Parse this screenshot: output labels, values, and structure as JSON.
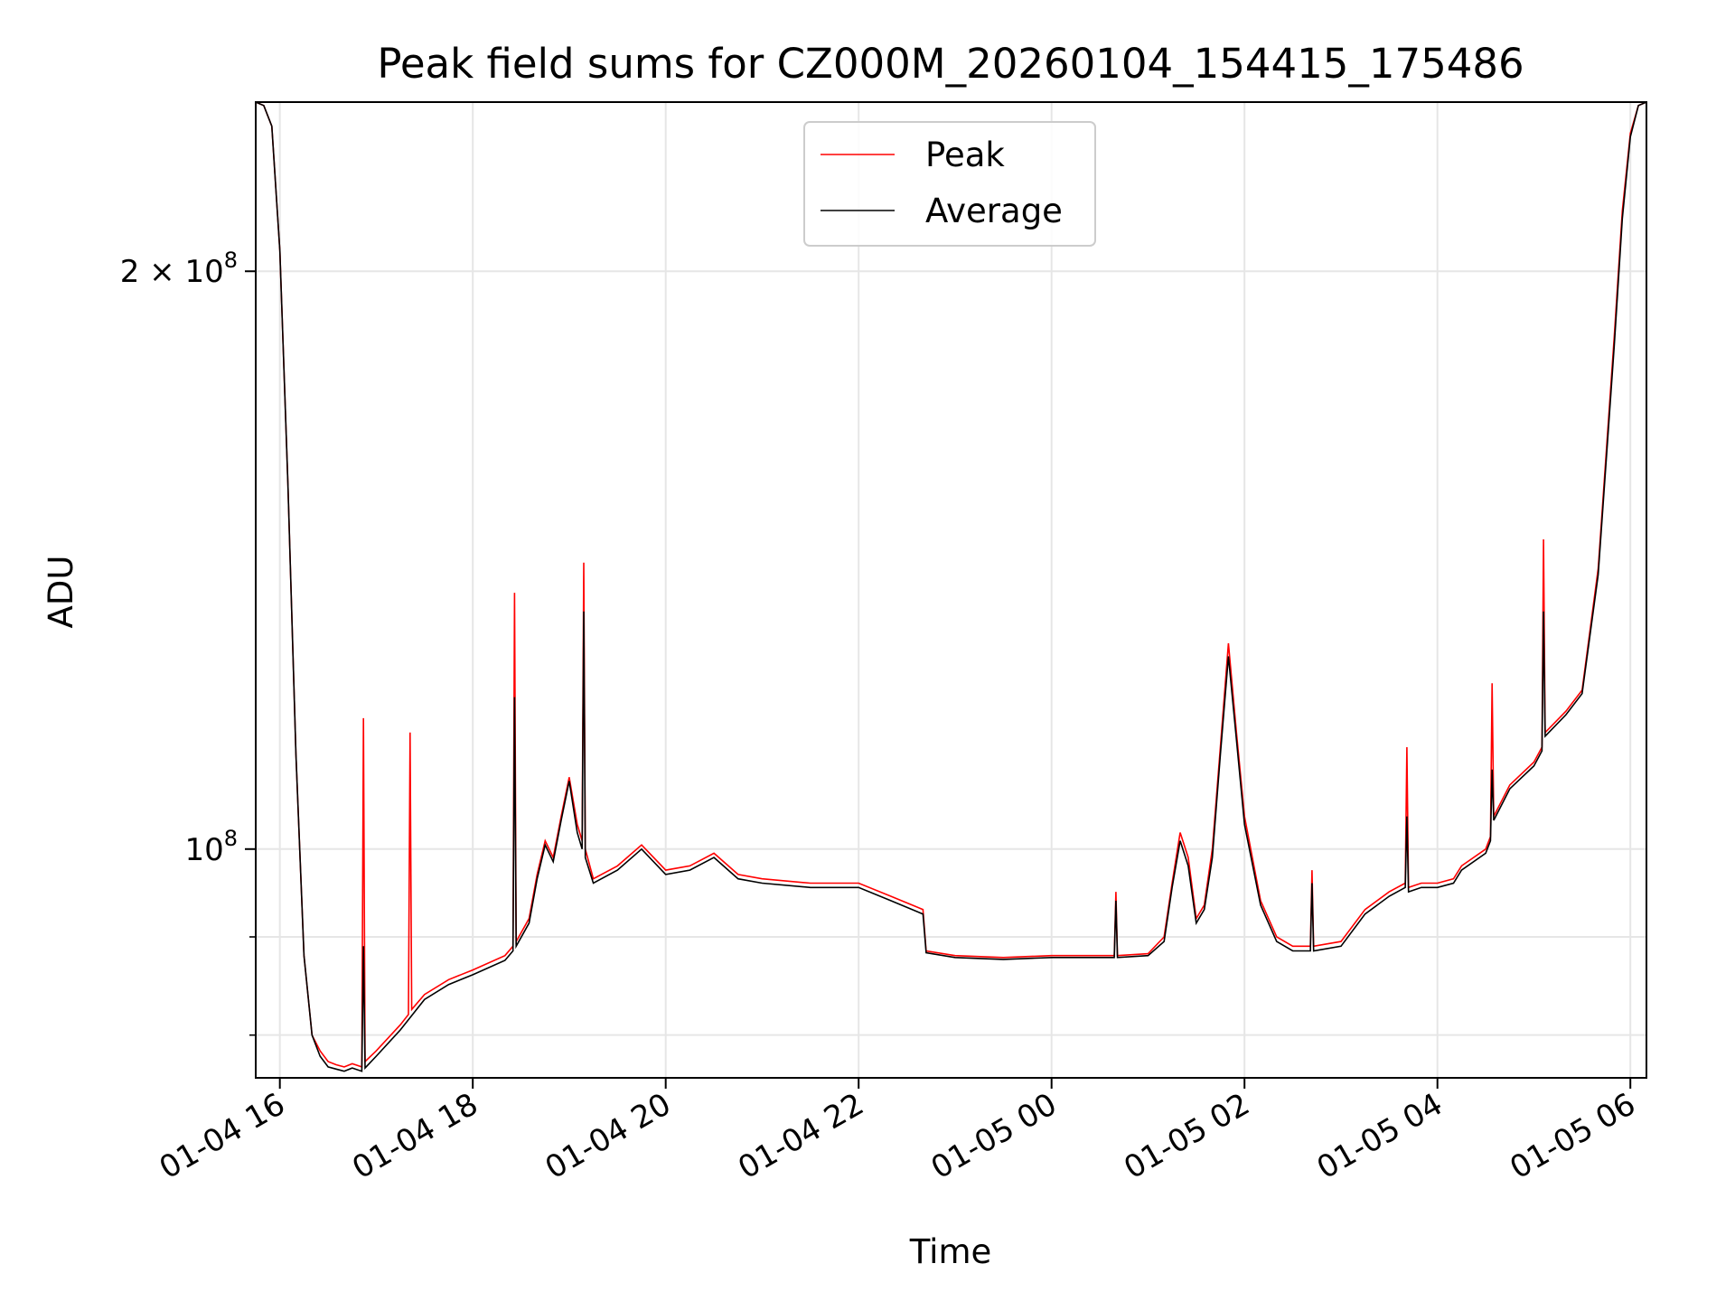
{
  "chart_data": {
    "type": "line",
    "title": "Peak field sums for CZ000M_20260104_154415_175486",
    "xlabel": "Time",
    "ylabel": "ADU",
    "yscale": "log",
    "ylim": [
      76000000,
      245000000
    ],
    "xlim": [
      "2026-01-04 15:45",
      "2026-01-05 06:10"
    ],
    "grid": true,
    "legend_position": "top-center",
    "x_ticks": [
      {
        "label": "01-04 16",
        "value": "2026-01-04 16:00"
      },
      {
        "label": "01-04 18",
        "value": "2026-01-04 18:00"
      },
      {
        "label": "01-04 20",
        "value": "2026-01-04 20:00"
      },
      {
        "label": "01-04 22",
        "value": "2026-01-04 22:00"
      },
      {
        "label": "01-05 00",
        "value": "2026-01-05 00:00"
      },
      {
        "label": "01-05 02",
        "value": "2026-01-05 02:00"
      },
      {
        "label": "01-05 04",
        "value": "2026-01-05 04:00"
      },
      {
        "label": "01-05 06",
        "value": "2026-01-05 06:00"
      }
    ],
    "y_major_ticks": [
      {
        "label_base": "2 × 10",
        "exp": "8",
        "value": 200000000
      },
      {
        "label_base": "10",
        "exp": "8",
        "value": 100000000
      }
    ],
    "y_minor_ticks": [
      80000000,
      90000000
    ],
    "series": [
      {
        "name": "Peak",
        "color": "#ff0000",
        "x": [
          "2026-01-04 15:45",
          "2026-01-04 15:50",
          "2026-01-04 15:55",
          "2026-01-04 16:00",
          "2026-01-04 16:05",
          "2026-01-04 16:10",
          "2026-01-04 16:15",
          "2026-01-04 16:20",
          "2026-01-04 16:25",
          "2026-01-04 16:30",
          "2026-01-04 16:35",
          "2026-01-04 16:40",
          "2026-01-04 16:45",
          "2026-01-04 16:51",
          "2026-01-04 16:52",
          "2026-01-04 16:53",
          "2026-01-04 17:00",
          "2026-01-04 17:15",
          "2026-01-04 17:20",
          "2026-01-04 17:21",
          "2026-01-04 17:22",
          "2026-01-04 17:30",
          "2026-01-04 17:45",
          "2026-01-04 18:00",
          "2026-01-04 18:20",
          "2026-01-04 18:25",
          "2026-01-04 18:26",
          "2026-01-04 18:27",
          "2026-01-04 18:35",
          "2026-01-04 18:40",
          "2026-01-04 18:45",
          "2026-01-04 18:50",
          "2026-01-04 18:55",
          "2026-01-04 19:00",
          "2026-01-04 19:05",
          "2026-01-04 19:08",
          "2026-01-04 19:09",
          "2026-01-04 19:10",
          "2026-01-04 19:15",
          "2026-01-04 19:30",
          "2026-01-04 19:45",
          "2026-01-04 20:00",
          "2026-01-04 20:15",
          "2026-01-04 20:30",
          "2026-01-04 20:45",
          "2026-01-04 21:00",
          "2026-01-04 21:30",
          "2026-01-04 22:00",
          "2026-01-04 22:20",
          "2026-01-04 22:40",
          "2026-01-04 22:42",
          "2026-01-04 23:00",
          "2026-01-04 23:30",
          "2026-01-05 00:00",
          "2026-01-05 00:30",
          "2026-01-05 00:39",
          "2026-01-05 00:40",
          "2026-01-05 00:41",
          "2026-01-05 01:00",
          "2026-01-05 01:10",
          "2026-01-05 01:15",
          "2026-01-05 01:20",
          "2026-01-05 01:25",
          "2026-01-05 01:30",
          "2026-01-05 01:35",
          "2026-01-05 01:40",
          "2026-01-05 01:45",
          "2026-01-05 01:50",
          "2026-01-05 01:55",
          "2026-01-05 02:00",
          "2026-01-05 02:10",
          "2026-01-05 02:20",
          "2026-01-05 02:30",
          "2026-01-05 02:41",
          "2026-01-05 02:42",
          "2026-01-05 02:43",
          "2026-01-05 03:00",
          "2026-01-05 03:15",
          "2026-01-05 03:30",
          "2026-01-05 03:40",
          "2026-01-05 03:41",
          "2026-01-05 03:42",
          "2026-01-05 03:50",
          "2026-01-05 04:00",
          "2026-01-05 04:10",
          "2026-01-05 04:15",
          "2026-01-05 04:30",
          "2026-01-05 04:33",
          "2026-01-05 04:34",
          "2026-01-05 04:35",
          "2026-01-05 04:45",
          "2026-01-05 05:00",
          "2026-01-05 05:05",
          "2026-01-05 05:06",
          "2026-01-05 05:07",
          "2026-01-05 05:20",
          "2026-01-05 05:30",
          "2026-01-05 05:40",
          "2026-01-05 05:50",
          "2026-01-05 05:55",
          "2026-01-05 06:00",
          "2026-01-05 06:05",
          "2026-01-05 06:10"
        ],
        "y": [
          245000000,
          244000000,
          238000000,
          205000000,
          155000000,
          112000000,
          88000000,
          80000000,
          78500000,
          77500000,
          77200000,
          77000000,
          77300000,
          77000000,
          117000000,
          77500000,
          78500000,
          81000000,
          82000000,
          115000000,
          82500000,
          84000000,
          85500000,
          86500000,
          88000000,
          89000000,
          136000000,
          89500000,
          92000000,
          97000000,
          101000000,
          99000000,
          104000000,
          109000000,
          103000000,
          101000000,
          141000000,
          100000000,
          96500000,
          98000000,
          100500000,
          97500000,
          98000000,
          99500000,
          97000000,
          96500000,
          96000000,
          96000000,
          94500000,
          93000000,
          88500000,
          88000000,
          87800000,
          88000000,
          88000000,
          88000000,
          95000000,
          88000000,
          88200000,
          90000000,
          96000000,
          102000000,
          99000000,
          92000000,
          93500000,
          100000000,
          113000000,
          128000000,
          115000000,
          104000000,
          94000000,
          90000000,
          89000000,
          89000000,
          97500000,
          89000000,
          89500000,
          93000000,
          95000000,
          96000000,
          113000000,
          95500000,
          96000000,
          96000000,
          96500000,
          98000000,
          100000000,
          101500000,
          122000000,
          104000000,
          108000000,
          111000000,
          113000000,
          145000000,
          115000000,
          118000000,
          121000000,
          140000000,
          185000000,
          215000000,
          236000000,
          244000000,
          245000000
        ]
      },
      {
        "name": "Average",
        "color": "#000000",
        "x": [
          "2026-01-04 15:45",
          "2026-01-04 15:50",
          "2026-01-04 15:55",
          "2026-01-04 16:00",
          "2026-01-04 16:05",
          "2026-01-04 16:10",
          "2026-01-04 16:15",
          "2026-01-04 16:20",
          "2026-01-04 16:25",
          "2026-01-04 16:30",
          "2026-01-04 16:35",
          "2026-01-04 16:40",
          "2026-01-04 16:45",
          "2026-01-04 16:51",
          "2026-01-04 16:52",
          "2026-01-04 16:53",
          "2026-01-04 17:00",
          "2026-01-04 17:15",
          "2026-01-04 17:30",
          "2026-01-04 17:45",
          "2026-01-04 18:00",
          "2026-01-04 18:20",
          "2026-01-04 18:25",
          "2026-01-04 18:26",
          "2026-01-04 18:27",
          "2026-01-04 18:35",
          "2026-01-04 18:40",
          "2026-01-04 18:45",
          "2026-01-04 18:50",
          "2026-01-04 18:55",
          "2026-01-04 19:00",
          "2026-01-04 19:05",
          "2026-01-04 19:08",
          "2026-01-04 19:09",
          "2026-01-04 19:10",
          "2026-01-04 19:15",
          "2026-01-04 19:30",
          "2026-01-04 19:45",
          "2026-01-04 20:00",
          "2026-01-04 20:15",
          "2026-01-04 20:30",
          "2026-01-04 20:45",
          "2026-01-04 21:00",
          "2026-01-04 21:30",
          "2026-01-04 22:00",
          "2026-01-04 22:20",
          "2026-01-04 22:40",
          "2026-01-04 22:42",
          "2026-01-04 23:00",
          "2026-01-04 23:30",
          "2026-01-05 00:00",
          "2026-01-05 00:30",
          "2026-01-05 00:39",
          "2026-01-05 00:40",
          "2026-01-05 00:41",
          "2026-01-05 01:00",
          "2026-01-05 01:10",
          "2026-01-05 01:15",
          "2026-01-05 01:20",
          "2026-01-05 01:25",
          "2026-01-05 01:30",
          "2026-01-05 01:35",
          "2026-01-05 01:40",
          "2026-01-05 01:45",
          "2026-01-05 01:50",
          "2026-01-05 01:55",
          "2026-01-05 02:00",
          "2026-01-05 02:10",
          "2026-01-05 02:20",
          "2026-01-05 02:30",
          "2026-01-05 02:41",
          "2026-01-05 02:42",
          "2026-01-05 02:43",
          "2026-01-05 03:00",
          "2026-01-05 03:15",
          "2026-01-05 03:30",
          "2026-01-05 03:40",
          "2026-01-05 03:41",
          "2026-01-05 03:42",
          "2026-01-05 03:50",
          "2026-01-05 04:00",
          "2026-01-05 04:10",
          "2026-01-05 04:15",
          "2026-01-05 04:30",
          "2026-01-05 04:33",
          "2026-01-05 04:34",
          "2026-01-05 04:35",
          "2026-01-05 04:45",
          "2026-01-05 05:00",
          "2026-01-05 05:05",
          "2026-01-05 05:06",
          "2026-01-05 05:07",
          "2026-01-05 05:20",
          "2026-01-05 05:30",
          "2026-01-05 05:40",
          "2026-01-05 05:50",
          "2026-01-05 05:55",
          "2026-01-05 06:00",
          "2026-01-05 06:05",
          "2026-01-05 06:10"
        ],
        "y": [
          245000000,
          244000000,
          238000000,
          205000000,
          155000000,
          112000000,
          88000000,
          80000000,
          78000000,
          77000000,
          76800000,
          76600000,
          76900000,
          76600000,
          89000000,
          76900000,
          78000000,
          80500000,
          83500000,
          85000000,
          86000000,
          87500000,
          88500000,
          120000000,
          89000000,
          91500000,
          96500000,
          100500000,
          98500000,
          103500000,
          108500000,
          102000000,
          100000000,
          133000000,
          99000000,
          96000000,
          97500000,
          100000000,
          97000000,
          97500000,
          99000000,
          96500000,
          96000000,
          95500000,
          95500000,
          94000000,
          92500000,
          88300000,
          87800000,
          87600000,
          87800000,
          87800000,
          87800000,
          94000000,
          87800000,
          88000000,
          89500000,
          95500000,
          101000000,
          98000000,
          91500000,
          93000000,
          99000000,
          112000000,
          126000000,
          114000000,
          103000000,
          93500000,
          89500000,
          88500000,
          88500000,
          96000000,
          88500000,
          89000000,
          92500000,
          94500000,
          95500000,
          104000000,
          95000000,
          95500000,
          95500000,
          96000000,
          97500000,
          99500000,
          101000000,
          110000000,
          103500000,
          107500000,
          110500000,
          112500000,
          133000000,
          114500000,
          117500000,
          120500000,
          139000000,
          183000000,
          213000000,
          235000000,
          244000000,
          245000000
        ]
      }
    ]
  }
}
